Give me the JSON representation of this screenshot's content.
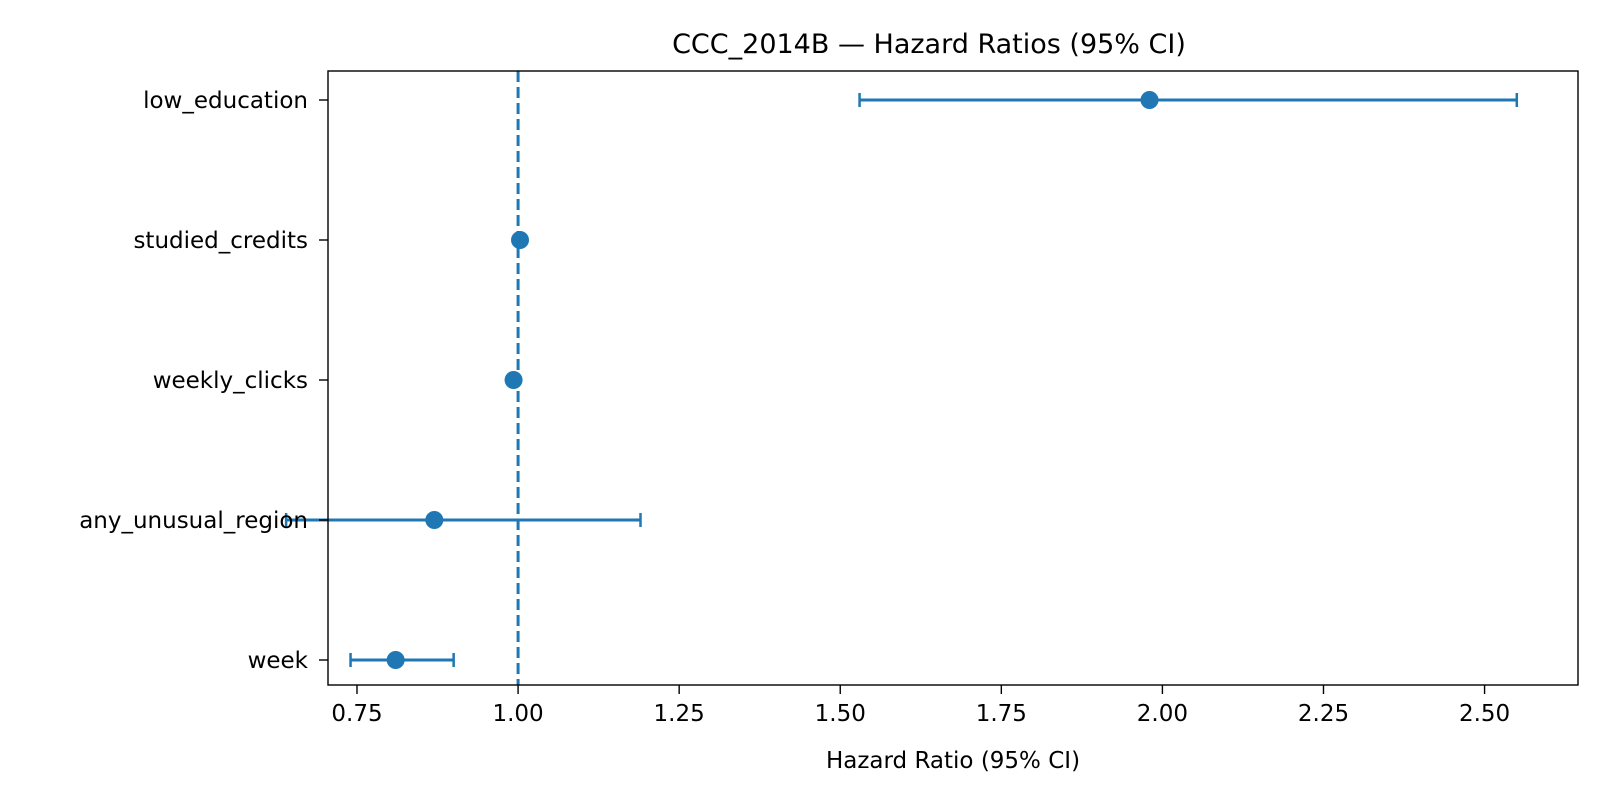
{
  "chart_data": {
    "type": "scatter",
    "subtype": "forest-plot",
    "title": "CCC_2014B — Hazard Ratios (95% CI)",
    "xlabel": "Hazard Ratio (95% CI)",
    "ylabel": "",
    "xlim": [
      0.705,
      2.645
    ],
    "xticks": [
      0.75,
      1.0,
      1.25,
      1.5,
      1.75,
      2.0,
      2.25,
      2.5
    ],
    "xtick_labels": [
      "0.75",
      "1.00",
      "1.25",
      "1.50",
      "1.75",
      "2.00",
      "2.25",
      "2.50"
    ],
    "reference_line": 1.0,
    "grid": false,
    "color": "#1f77b4",
    "rows": [
      {
        "label": "low_education",
        "hr": 1.98,
        "lower": 1.53,
        "upper": 2.55
      },
      {
        "label": "studied_credits",
        "hr": 1.003,
        "lower": 1.001,
        "upper": 1.005
      },
      {
        "label": "weekly_clicks",
        "hr": 0.993,
        "lower": 0.991,
        "upper": 0.995
      },
      {
        "label": "any_unusual_region",
        "hr": 0.87,
        "lower": 0.64,
        "upper": 1.19
      },
      {
        "label": "week",
        "hr": 0.81,
        "lower": 0.74,
        "upper": 0.9
      }
    ]
  }
}
